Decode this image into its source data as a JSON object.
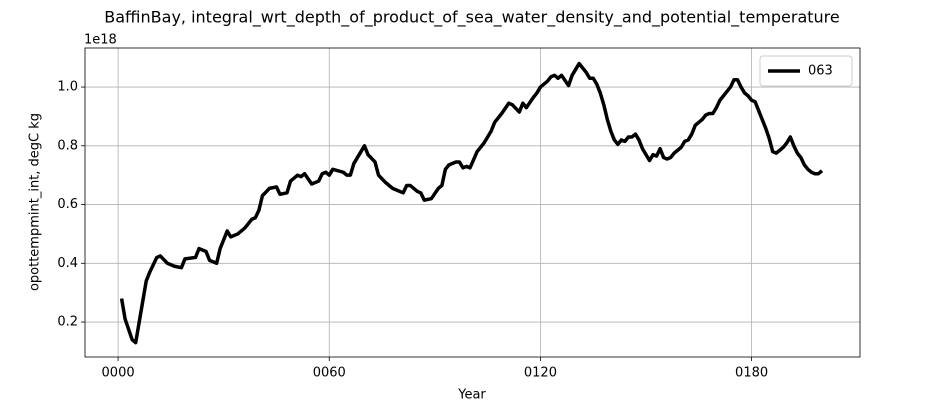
{
  "chart_data": {
    "type": "line",
    "title": "BaffinBay, integral_wrt_depth_of_product_of_sea_water_density_and_potential_temperature",
    "x_label": "Year",
    "y_label": "opottempmint_int, degC kg",
    "y_offset_label": "1e18",
    "xlim": [
      -9.4,
      210.8
    ],
    "ylim": [
      0.081,
      1.133
    ],
    "xticks": [
      {
        "value": 0,
        "label": "0000"
      },
      {
        "value": 60,
        "label": "0060"
      },
      {
        "value": 120,
        "label": "0120"
      },
      {
        "value": 180,
        "label": "0180"
      }
    ],
    "yticks": [
      0.2,
      0.4,
      0.6,
      0.8,
      {
        "value": 1,
        "label": "1.0"
      }
    ],
    "grid": true,
    "legend": "upper right",
    "x": [
      1,
      2,
      4,
      5,
      6,
      8,
      9,
      11,
      12,
      14,
      16,
      18,
      19,
      22,
      23,
      25,
      26,
      28,
      29,
      31,
      32,
      34,
      36,
      38,
      39,
      40,
      41,
      43,
      45,
      46,
      48,
      49,
      51,
      52,
      53,
      55,
      57,
      58,
      59,
      60,
      61,
      64,
      65,
      66,
      67,
      69,
      70,
      71,
      73,
      74,
      76,
      78,
      80,
      81,
      82,
      83,
      85,
      86,
      87,
      89,
      91,
      92,
      93,
      94,
      96,
      97,
      98,
      99,
      100,
      102,
      104,
      106,
      107,
      109,
      111,
      112,
      114,
      115,
      116,
      118,
      119,
      120,
      122,
      123,
      124,
      125,
      126,
      128,
      129,
      130,
      131,
      133,
      134,
      135,
      136,
      137,
      138,
      139,
      140,
      141,
      142,
      143,
      144,
      145,
      146,
      147,
      148,
      149,
      150,
      151,
      152,
      153,
      154,
      155,
      156,
      157,
      158,
      159,
      160,
      161,
      162,
      163,
      164,
      165,
      166,
      167,
      168,
      169,
      170,
      171,
      172,
      173,
      174,
      175,
      176,
      177,
      178,
      179,
      180,
      181,
      182,
      183,
      184,
      185,
      186,
      187,
      188,
      189,
      190,
      191,
      192,
      193,
      194,
      195,
      196,
      197,
      198,
      199,
      200
    ],
    "series": [
      {
        "name": "063",
        "color": "#000000",
        "values": [
          0.28,
          0.21,
          0.14,
          0.13,
          0.2,
          0.34,
          0.37,
          0.42,
          0.425,
          0.4,
          0.39,
          0.385,
          0.415,
          0.42,
          0.45,
          0.44,
          0.41,
          0.4,
          0.45,
          0.51,
          0.49,
          0.5,
          0.52,
          0.55,
          0.555,
          0.58,
          0.63,
          0.655,
          0.66,
          0.635,
          0.64,
          0.68,
          0.7,
          0.695,
          0.705,
          0.67,
          0.68,
          0.705,
          0.71,
          0.7,
          0.72,
          0.71,
          0.7,
          0.7,
          0.74,
          0.78,
          0.8,
          0.77,
          0.745,
          0.7,
          0.675,
          0.655,
          0.645,
          0.64,
          0.665,
          0.665,
          0.645,
          0.64,
          0.615,
          0.62,
          0.655,
          0.665,
          0.72,
          0.735,
          0.745,
          0.745,
          0.725,
          0.73,
          0.725,
          0.78,
          0.81,
          0.85,
          0.88,
          0.91,
          0.945,
          0.94,
          0.915,
          0.945,
          0.93,
          0.965,
          0.98,
          1.0,
          1.02,
          1.035,
          1.04,
          1.03,
          1.04,
          1.005,
          1.04,
          1.06,
          1.08,
          1.05,
          1.03,
          1.03,
          1.01,
          0.98,
          0.94,
          0.89,
          0.85,
          0.82,
          0.805,
          0.82,
          0.815,
          0.83,
          0.83,
          0.84,
          0.82,
          0.79,
          0.77,
          0.75,
          0.77,
          0.765,
          0.79,
          0.76,
          0.755,
          0.76,
          0.775,
          0.785,
          0.795,
          0.815,
          0.82,
          0.84,
          0.87,
          0.88,
          0.89,
          0.905,
          0.91,
          0.91,
          0.93,
          0.955,
          0.97,
          0.985,
          1.0,
          1.025,
          1.025,
          1.0,
          0.98,
          0.97,
          0.955,
          0.95,
          0.92,
          0.89,
          0.86,
          0.825,
          0.78,
          0.775,
          0.785,
          0.795,
          0.81,
          0.83,
          0.8,
          0.775,
          0.76,
          0.735,
          0.72,
          0.71,
          0.705,
          0.705,
          0.715
        ]
      }
    ]
  }
}
